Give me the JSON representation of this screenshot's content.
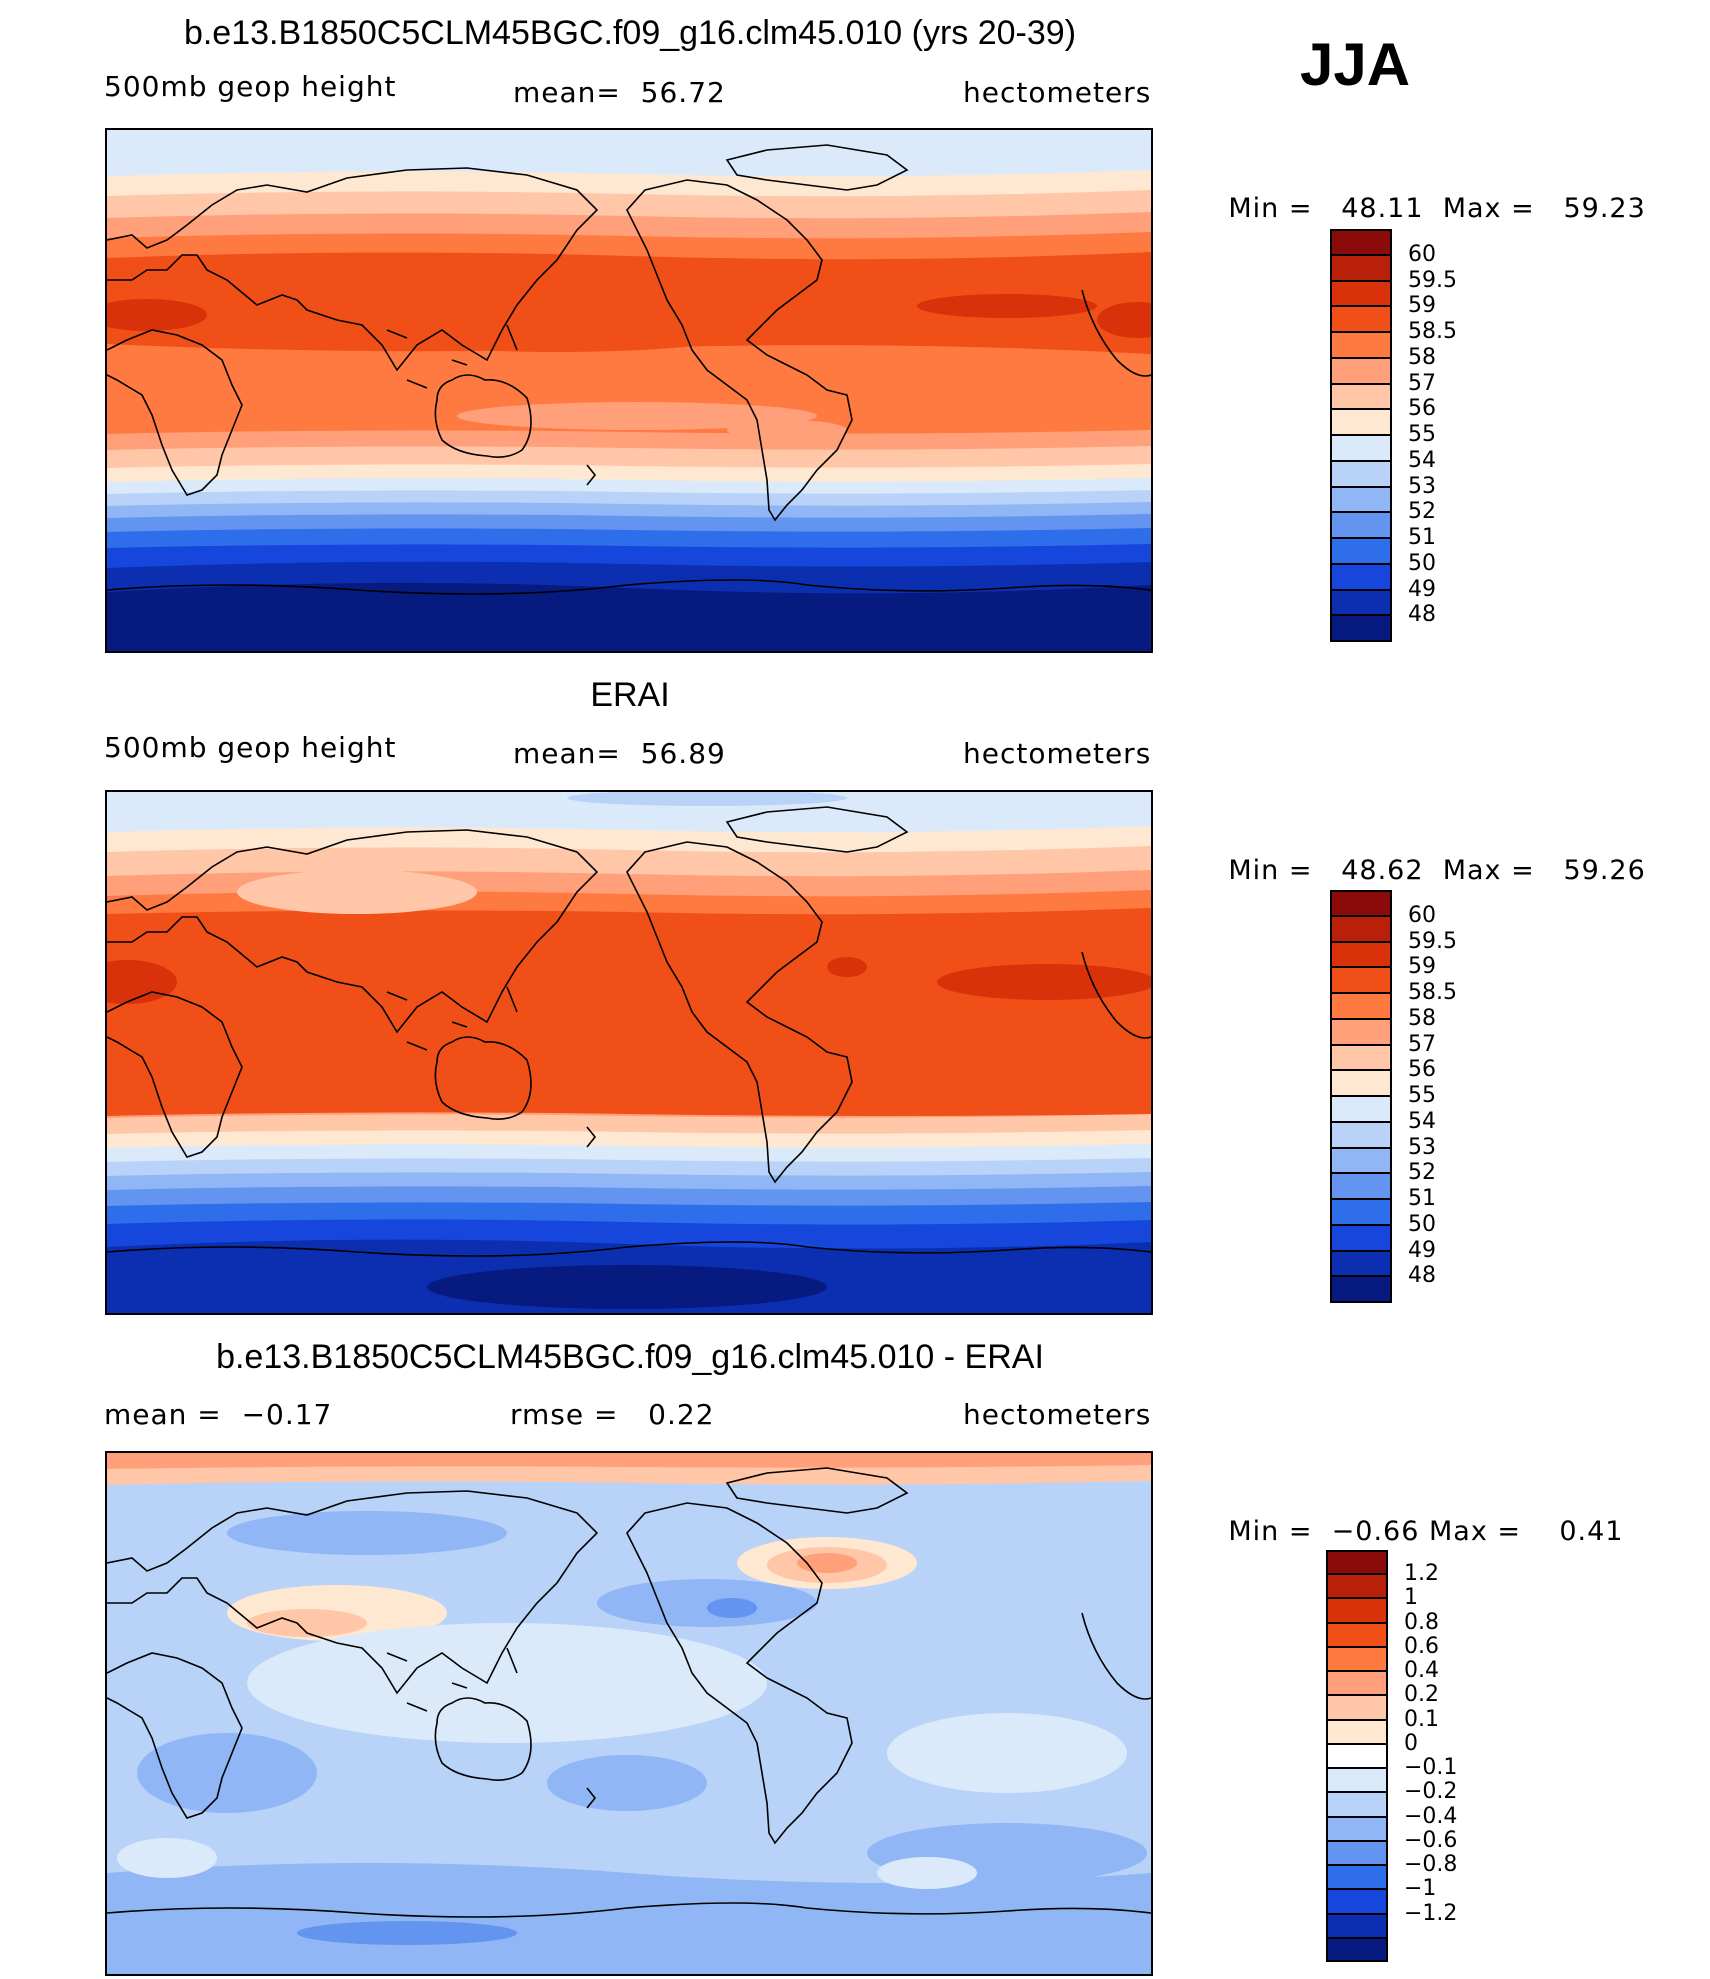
{
  "season": "JJA",
  "panels": [
    {
      "title": "b.e13.B1850C5CLM45BGC.f09_g16.clm45.010 (yrs 20-39)",
      "left_text": "500mb geop height",
      "middle_text": "mean=  56.72",
      "units": "hectometers",
      "min_label": "Min =",
      "min_value": "48.11",
      "max_label": "Max =",
      "max_value": "59.23",
      "palette": "abs",
      "colorbar_labels": [
        "60",
        "59.5",
        "59",
        "58.5",
        "58",
        "57",
        "56",
        "55",
        "54",
        "53",
        "52",
        "51",
        "50",
        "49",
        "48"
      ]
    },
    {
      "title": "ERAI",
      "left_text": "500mb geop height",
      "middle_text": "mean=  56.89",
      "units": "hectometers",
      "min_label": "Min =",
      "min_value": "48.62",
      "max_label": "Max =",
      "max_value": "59.26",
      "palette": "abs",
      "colorbar_labels": [
        "60",
        "59.5",
        "59",
        "58.5",
        "58",
        "57",
        "56",
        "55",
        "54",
        "53",
        "52",
        "51",
        "50",
        "49",
        "48"
      ]
    },
    {
      "title": "b.e13.B1850C5CLM45BGC.f09_g16.clm45.010 - ERAI",
      "left_text": "mean =  −0.17",
      "middle_text": "rmse =   0.22",
      "units": "hectometers",
      "min_label": "Min =",
      "min_value": "−0.66",
      "max_label": "Max =",
      "max_value": "0.41",
      "palette": "diff",
      "colorbar_labels": [
        "1.2",
        "1",
        "0.8",
        "0.6",
        "0.4",
        "0.2",
        "0.1",
        "0",
        "−0.1",
        "−0.2",
        "−0.4",
        "−0.6",
        "−0.8",
        "−1",
        "−1.2"
      ]
    }
  ],
  "colors": {
    "abs": [
      "#8b0a0a",
      "#b8200a",
      "#d9310a",
      "#f05018",
      "#ff7a40",
      "#ffa07a",
      "#ffc6a8",
      "#ffe8d2",
      "#dbeafa",
      "#b8d2f8",
      "#90b6f5",
      "#6294f0",
      "#2f6eea",
      "#1646dc",
      "#0b2fb0",
      "#061a80"
    ],
    "diff": [
      "#8b0a0a",
      "#b8200a",
      "#d9310a",
      "#f05018",
      "#ff7a40",
      "#ffa07a",
      "#ffc6a8",
      "#ffe8d2",
      "#ffffff",
      "#dbeafa",
      "#b8d2f8",
      "#90b6f5",
      "#6294f0",
      "#2f6eea",
      "#1646dc",
      "#0b2fb0",
      "#061a80"
    ]
  }
}
